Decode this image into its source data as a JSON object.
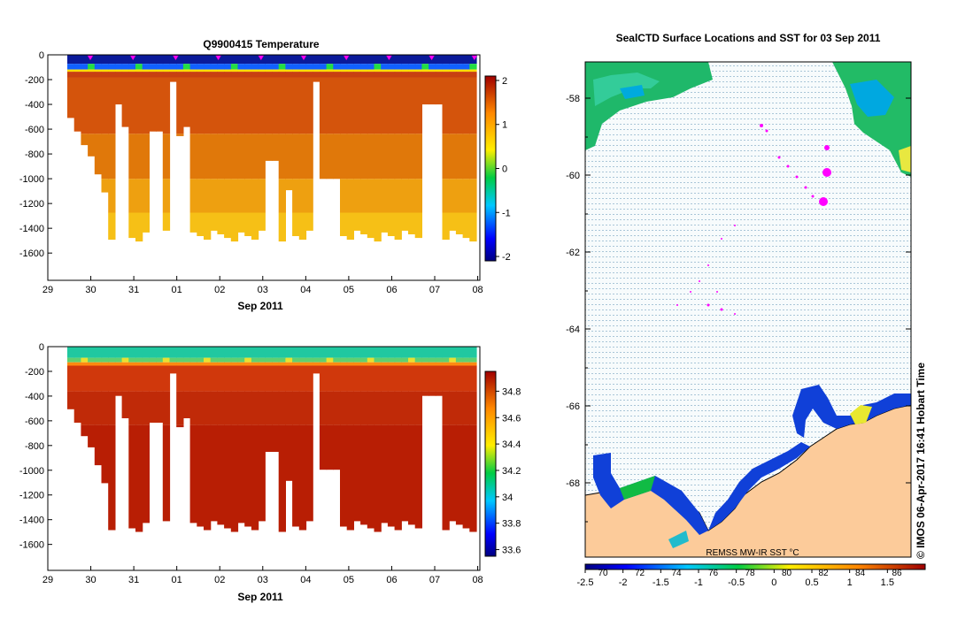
{
  "chart_data": [
    {
      "type": "heatmap",
      "title": "Q9900415  Temperature",
      "xlabel": "Sep 2011",
      "x_ticks": [
        "29",
        "30",
        "31",
        "01",
        "02",
        "03",
        "04",
        "05",
        "06",
        "07",
        "08"
      ],
      "y_ticks": [
        "0",
        "-200",
        "-400",
        "-600",
        "-800",
        "-1000",
        "-1200",
        "-1400",
        "-1600"
      ],
      "ylim": [
        -1800,
        0
      ],
      "colorbar": {
        "min": -2.1,
        "max": 2.1,
        "ticks": [
          "2",
          "1",
          "0",
          "-1",
          "-2"
        ]
      },
      "profile_markers": 10
    },
    {
      "type": "heatmap",
      "title": "",
      "xlabel": "Sep 2011",
      "x_ticks": [
        "29",
        "30",
        "31",
        "01",
        "02",
        "03",
        "04",
        "05",
        "06",
        "07",
        "08"
      ],
      "y_ticks": [
        "0",
        "-200",
        "-400",
        "-600",
        "-800",
        "-1000",
        "-1200",
        "-1400",
        "-1600"
      ],
      "ylim": [
        -1800,
        0
      ],
      "colorbar": {
        "min": 33.55,
        "max": 34.95,
        "ticks": [
          "34.8",
          "34.6",
          "34.4",
          "34.2",
          "34",
          "33.8",
          "33.6"
        ]
      }
    },
    {
      "type": "heatmap",
      "title": "SealCTD Surface Locations and SST for 03 Sep 2011",
      "y_ticks": [
        "-58",
        "-60",
        "-62",
        "-64",
        "-66",
        "-68"
      ],
      "colorbar": {
        "min": -2.5,
        "max": 2.0,
        "ticks": [
          "-2.5",
          "-2",
          "-1.5",
          "-1",
          "-0.5",
          "0",
          "0.5",
          "1",
          "1.5"
        ],
        "top_ticks": [
          "70",
          "72",
          "74",
          "76",
          "78",
          "80",
          "82",
          "84",
          "86"
        ]
      },
      "source_label": "REMSS MW-IR SST °C",
      "credit": "© IMOS 06-Apr-2017 16:41 Hobart Time"
    }
  ],
  "colors": {
    "land": "#fccb9a",
    "track": "#ff00ff",
    "ice": "#f4f8fa"
  }
}
